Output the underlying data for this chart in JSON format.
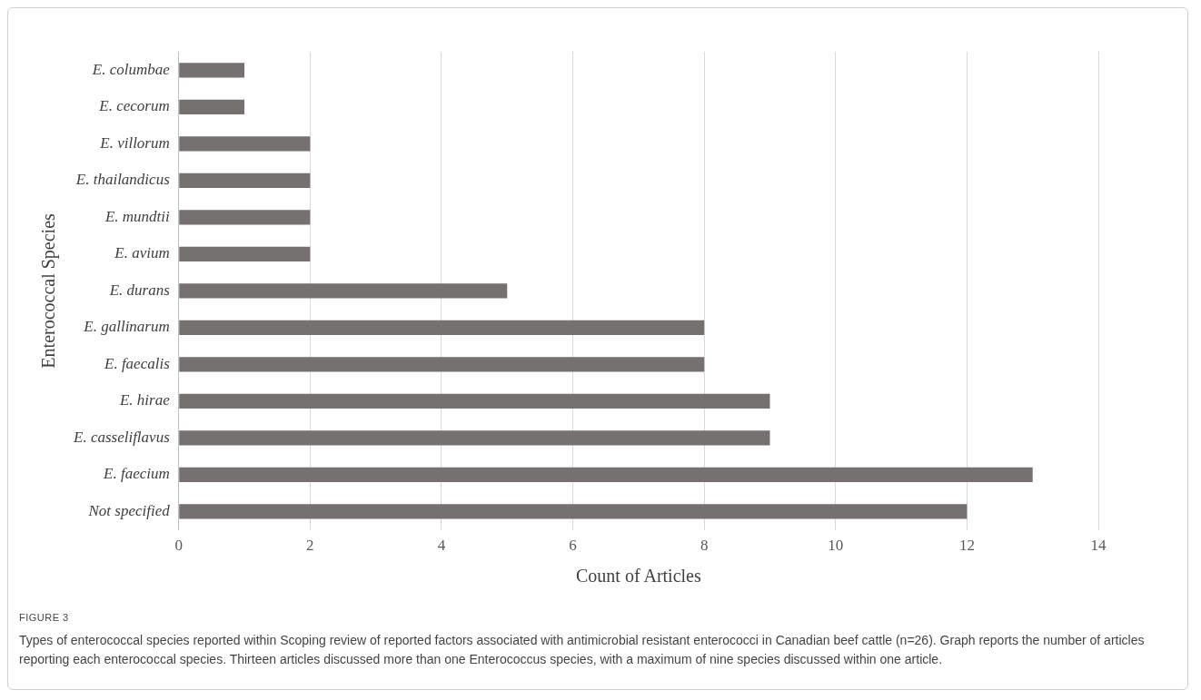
{
  "chart_data": {
    "type": "bar",
    "orientation": "horizontal",
    "categories": [
      "E. columbae",
      "E. cecorum",
      "E. villorum",
      "E. thailandicus",
      "E. mundtii",
      "E. avium",
      "E. durans",
      "E. gallinarum",
      "E. faecalis",
      "E. hirae",
      "E. casseliflavus",
      "E. faecium",
      "Not specified"
    ],
    "values": [
      1,
      1,
      2,
      2,
      2,
      2,
      5,
      8,
      8,
      9,
      9,
      13,
      12
    ],
    "color": "#767171",
    "xlim": [
      0,
      14
    ],
    "xticks": [
      0,
      2,
      4,
      6,
      8,
      10,
      12,
      14
    ],
    "xlabel": "Count of Articles",
    "ylabel": "Enterococcal Species",
    "grid": "x",
    "legend": false,
    "annotations": [
      "FIGURE 3",
      "Types of enterococcal species reported within Scoping review of reported factors associated with antimicrobial resistant enterococci in Canadian beef cattle (n=26). Graph reports the number of articles reporting each enterococcal species. Thirteen articles discussed more than one Enterococcus species, with a maximum of nine species discussed within one article."
    ]
  }
}
